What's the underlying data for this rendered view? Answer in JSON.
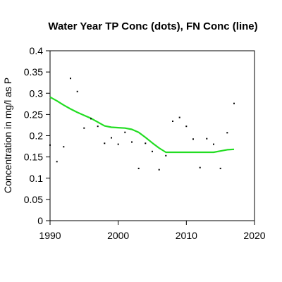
{
  "chart_data": {
    "type": "scatter",
    "title": "Water Year TP Conc (dots), FN Conc (line)",
    "xlabel": "",
    "ylabel": "Concentration in mg/l as P",
    "xlim": [
      1990,
      2020
    ],
    "ylim": [
      0,
      0.4
    ],
    "x_ticks": [
      1990,
      2000,
      2010,
      2020
    ],
    "y_ticks": [
      0,
      0.05,
      0.1,
      0.15,
      0.2,
      0.25,
      0.3,
      0.35,
      0.4
    ],
    "grid": false,
    "series": [
      {
        "type": "scatter",
        "color": "#000000",
        "x": [
          1990,
          1991,
          1992,
          1993,
          1994,
          1995,
          1996,
          1997,
          1998,
          1999,
          2000,
          2001,
          2002,
          2003,
          2004,
          2005,
          2006,
          2007,
          2008,
          2009,
          2010,
          2011,
          2012,
          2013,
          2014,
          2015,
          2016,
          2017
        ],
        "y": [
          0.178,
          0.139,
          0.174,
          0.335,
          0.304,
          0.218,
          0.24,
          0.222,
          0.182,
          0.195,
          0.18,
          0.208,
          0.185,
          0.123,
          0.182,
          0.163,
          0.12,
          0.153,
          0.234,
          0.243,
          0.222,
          0.192,
          0.125,
          0.193,
          0.18,
          0.123,
          0.207,
          0.276
        ]
      },
      {
        "type": "line",
        "color": "#22dd22",
        "x": [
          1990,
          1991,
          1992,
          1993,
          1994,
          1995,
          1996,
          1997,
          1998,
          1999,
          2000,
          2001,
          2002,
          2003,
          2004,
          2005,
          2006,
          2007,
          2008,
          2009,
          2010,
          2011,
          2012,
          2013,
          2014,
          2015,
          2016,
          2017
        ],
        "y": [
          0.291,
          0.282,
          0.272,
          0.263,
          0.255,
          0.248,
          0.241,
          0.232,
          0.223,
          0.22,
          0.219,
          0.218,
          0.215,
          0.208,
          0.196,
          0.183,
          0.171,
          0.161,
          0.161,
          0.161,
          0.161,
          0.161,
          0.161,
          0.161,
          0.161,
          0.164,
          0.167,
          0.168
        ]
      }
    ]
  }
}
